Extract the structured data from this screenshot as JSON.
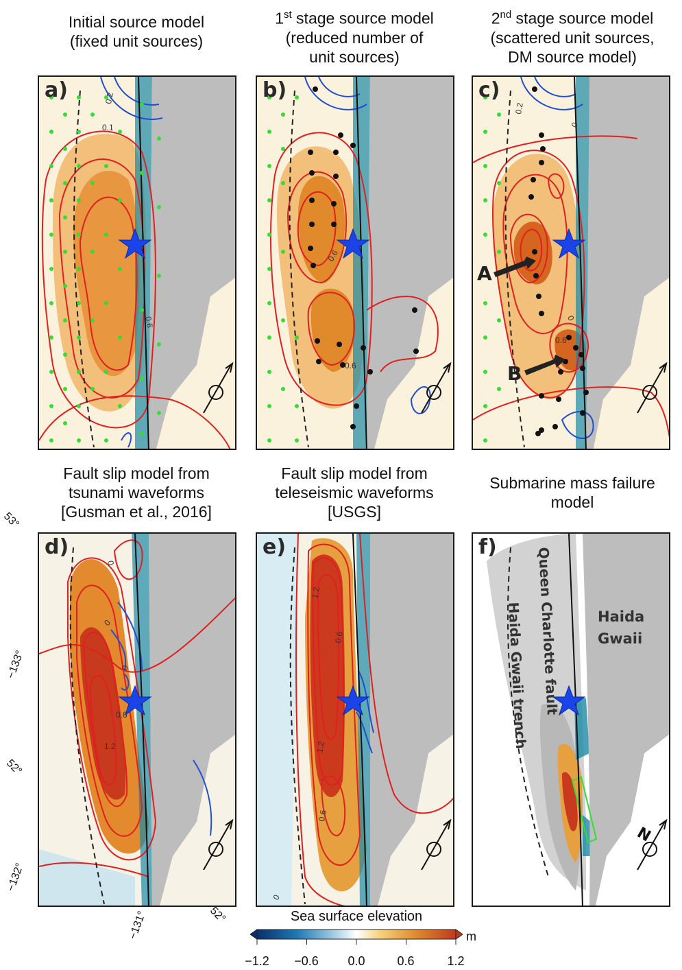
{
  "panels": [
    {
      "id": "a",
      "label": "a)",
      "title": [
        "Initial source model",
        "(fixed unit sources)"
      ],
      "contours": [
        "0.2",
        "0.1",
        "0.6"
      ]
    },
    {
      "id": "b",
      "label": "b)",
      "title": [
        "1st stage source model",
        "(reduced number of",
        "unit sources)"
      ],
      "title_sup": "st",
      "contours": [
        "0.6",
        "0.6"
      ]
    },
    {
      "id": "c",
      "label": "c)",
      "title": [
        "2nd stage source model",
        "(scattered unit sources,",
        "DM source model)"
      ],
      "title_sup": "nd",
      "contours": [
        "0.2",
        "0",
        "0.6",
        "0"
      ],
      "arrows": [
        "A",
        "B"
      ]
    },
    {
      "id": "d",
      "label": "d)",
      "title": [
        "Fault slip model from",
        "tsunami waveforms",
        "[Gusman et al., 2016]"
      ],
      "contours": [
        "0",
        "0",
        "0",
        "0.6",
        "1.2"
      ]
    },
    {
      "id": "e",
      "label": "e)",
      "title": [
        "Fault slip model from",
        "teleseismic waveforms",
        "[USGS]"
      ],
      "contours": [
        "1.2",
        "0.6",
        "1.2",
        "0.6",
        "0"
      ]
    },
    {
      "id": "f",
      "label": "f)",
      "title": [
        "Submarine mass failure",
        "model"
      ],
      "labels": [
        "Queen Charlotte fault",
        "Haida Gwaii trench",
        "Haida",
        "Gwaii"
      ],
      "north": "N"
    }
  ],
  "coordinates": {
    "lat1": "53°",
    "lon1": "−133°",
    "lat2": "52°",
    "lon2": "−132°",
    "lon3": "−131°",
    "lat3": "52°"
  },
  "colorbar": {
    "title": "Sea surface elevation",
    "unit": "m",
    "ticks": [
      "−1.2",
      "−0.6",
      "0.0",
      "0.6",
      "1.2"
    ],
    "colors": [
      "#08306b",
      "#1f78b4",
      "#9ecae1",
      "#ffffff",
      "#f6d27a",
      "#e08a2c",
      "#c0391e"
    ]
  },
  "colors": {
    "contour_pos": "#e02020",
    "contour_neg": "#1f4fd0",
    "star": "#1a44e8",
    "land": "#bdbdbd",
    "unit_source": "#33dd33"
  }
}
